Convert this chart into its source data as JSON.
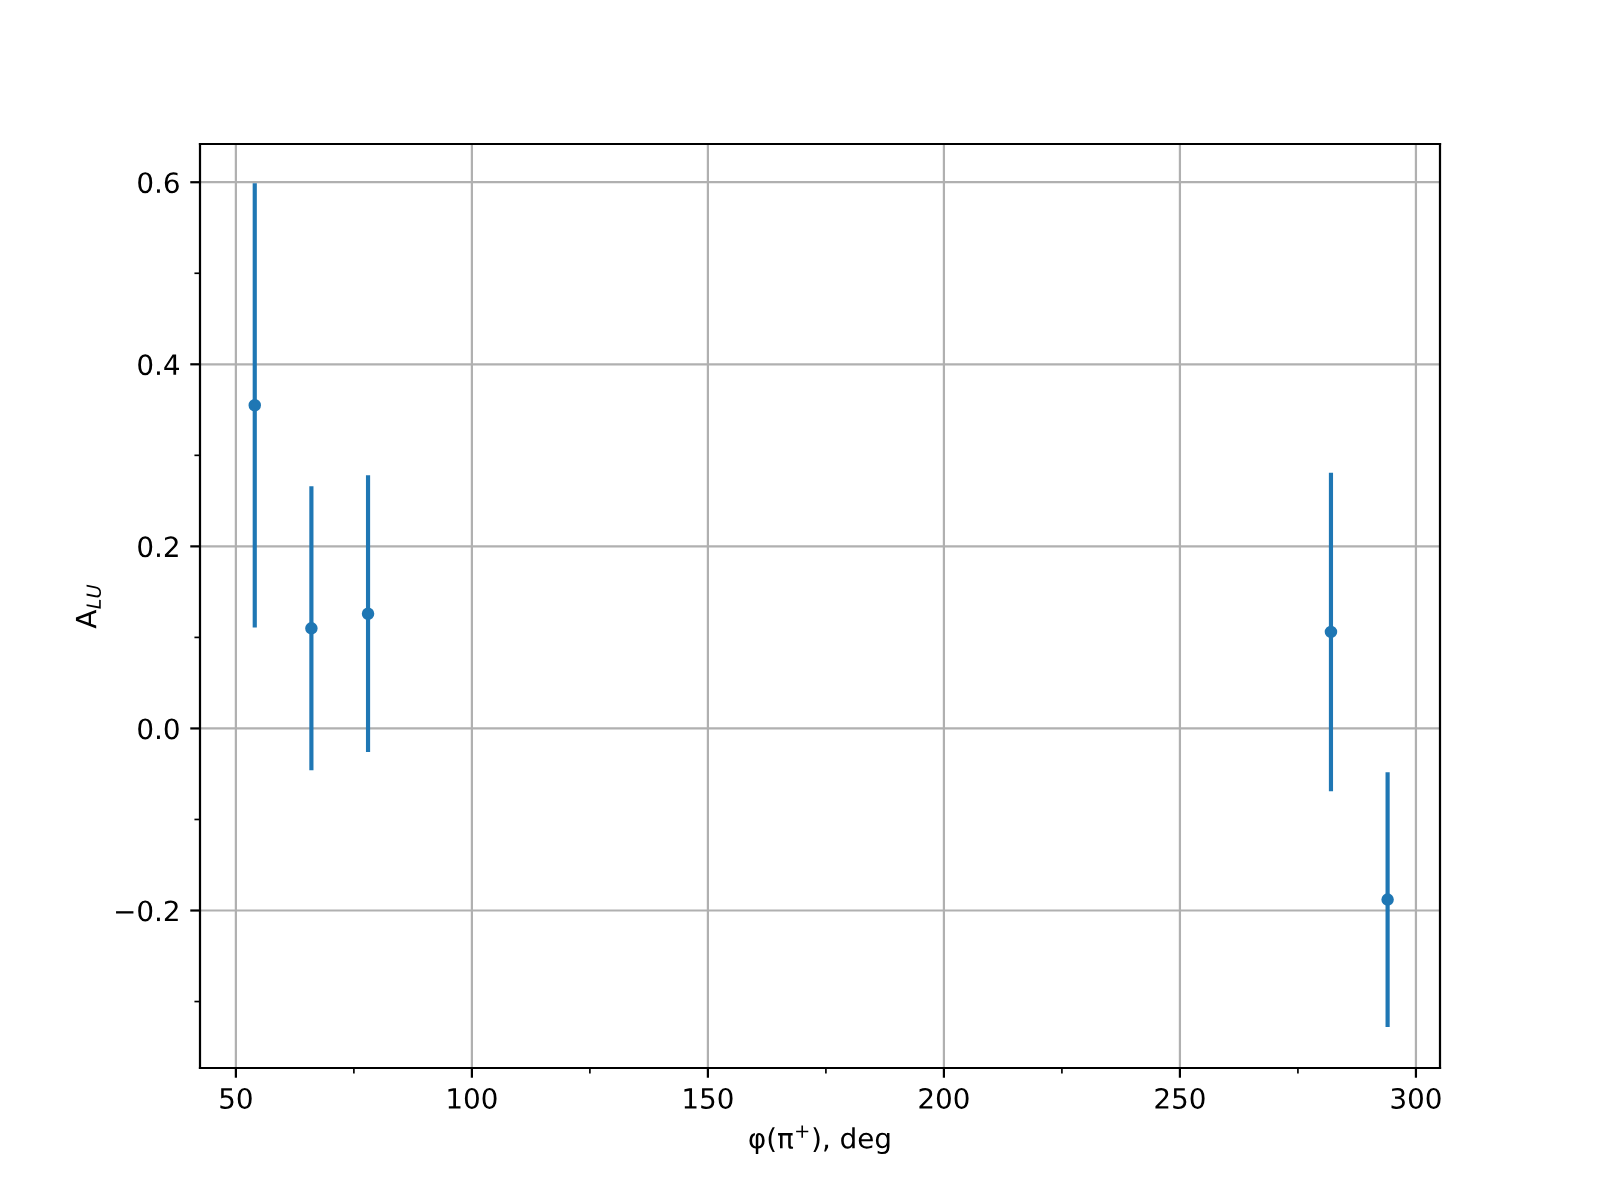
{
  "chart_data": {
    "type": "scatter",
    "xlabel": "φ(π$^{+}$), deg",
    "ylabel": "A$_{LU}$",
    "x": [
      54,
      66,
      78,
      282,
      294
    ],
    "series": [
      {
        "color": "#1f77b4",
        "values": [
          0.355,
          0.11,
          0.126,
          0.106,
          -0.188
        ],
        "errors": [
          0.244,
          0.156,
          0.152,
          0.175,
          0.14
        ]
      }
    ],
    "xlim": [
      42.4,
      305.1
    ],
    "ylim": [
      -0.373,
      0.642
    ],
    "xticks": [
      50,
      {
        "value": 75,
        "label": null
      },
      100,
      {
        "value": 125,
        "label": null
      },
      150,
      {
        "value": 175,
        "label": null
      },
      200,
      {
        "value": 225,
        "label": null
      },
      250,
      {
        "value": 275,
        "label": null
      },
      300
    ],
    "yticks": [
      {
        "value": -0.3,
        "label": null
      },
      {
        "value": -0.2,
        "label": "−0.2"
      },
      {
        "value": -0.1,
        "label": null
      },
      {
        "value": 0,
        "label": "0.0"
      },
      {
        "value": 0.1,
        "label": null
      },
      0.2,
      {
        "value": 0.3,
        "label": null
      },
      0.4,
      {
        "value": 0.5,
        "label": null
      },
      0.6
    ],
    "grid": true,
    "marker": "circle",
    "legend": false
  }
}
